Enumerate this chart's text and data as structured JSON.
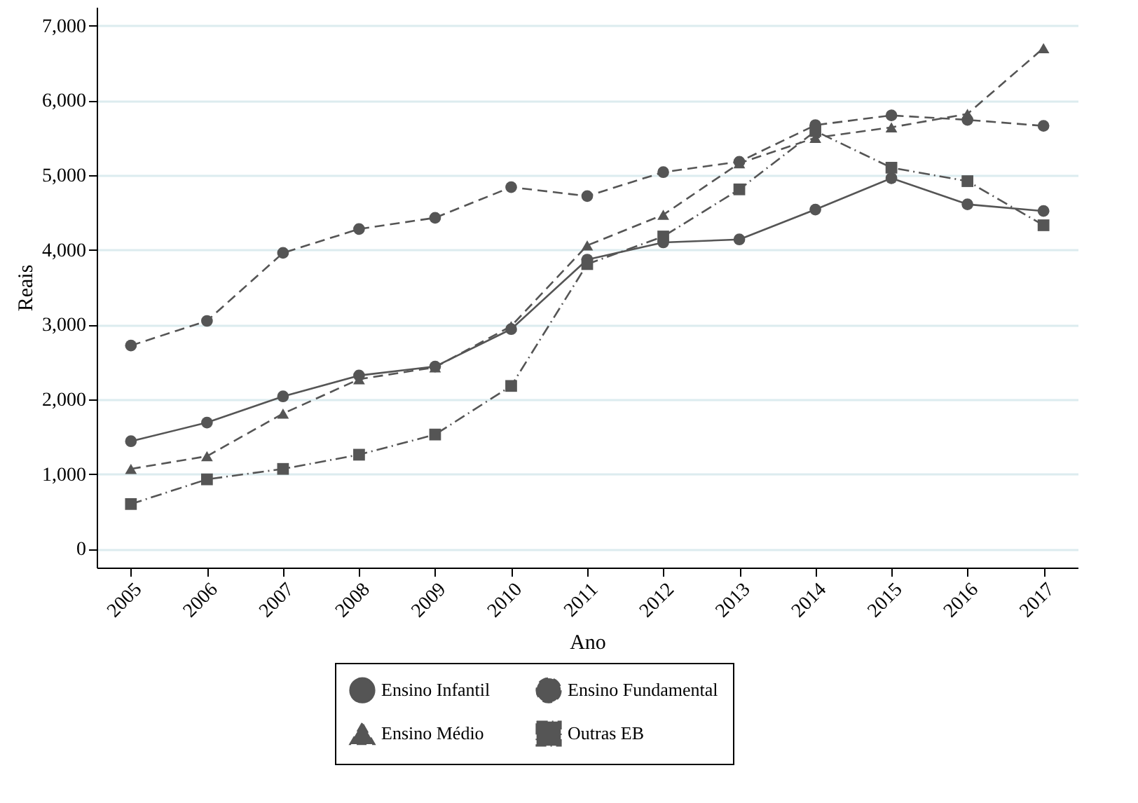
{
  "chart_data": {
    "type": "line",
    "xlabel": "Ano",
    "ylabel": "Reais",
    "categories": [
      "2005",
      "2006",
      "2007",
      "2008",
      "2009",
      "2010",
      "2011",
      "2012",
      "2013",
      "2014",
      "2015",
      "2016",
      "2017"
    ],
    "ylim": [
      -250,
      7250
    ],
    "yticks": [
      0,
      {
        "value": 1000,
        "label": "1,000"
      },
      {
        "value": 2000,
        "label": "2,000"
      },
      {
        "value": 3000,
        "label": "3,000"
      },
      {
        "value": 4000,
        "label": "4,000"
      },
      {
        "value": 5000,
        "label": "5,000"
      },
      {
        "value": 6000,
        "label": "6,000"
      },
      {
        "value": 7000,
        "label": "7,000"
      }
    ],
    "grid": "y",
    "legend": "bottom",
    "series": [
      {
        "name": "Ensino Infantil",
        "color": "#555555",
        "marker": "circle",
        "line_style": "solid",
        "values": [
          1440,
          1690,
          2040,
          2320,
          2440,
          2940,
          3870,
          4100,
          4140,
          4540,
          4960,
          4610,
          4520
        ]
      },
      {
        "name": "Ensino Fundamental",
        "color": "#555555",
        "marker": "circle",
        "line_style": "dashed",
        "values": [
          2720,
          3050,
          3960,
          4280,
          4430,
          4840,
          4720,
          5040,
          5180,
          5670,
          5800,
          5740,
          5660
        ]
      },
      {
        "name": "Ensino Médio",
        "color": "#555555",
        "marker": "triangle",
        "line_style": "dashed",
        "values": [
          1070,
          1240,
          1810,
          2270,
          2430,
          2980,
          4060,
          4470,
          5160,
          5500,
          5640,
          5820,
          6700
        ]
      },
      {
        "name": "Outras EB",
        "color": "#555555",
        "marker": "square",
        "line_style": "dashdot",
        "values": [
          600,
          930,
          1070,
          1260,
          1530,
          2180,
          3810,
          4180,
          4810,
          5590,
          5100,
          4920,
          4330
        ]
      }
    ]
  }
}
